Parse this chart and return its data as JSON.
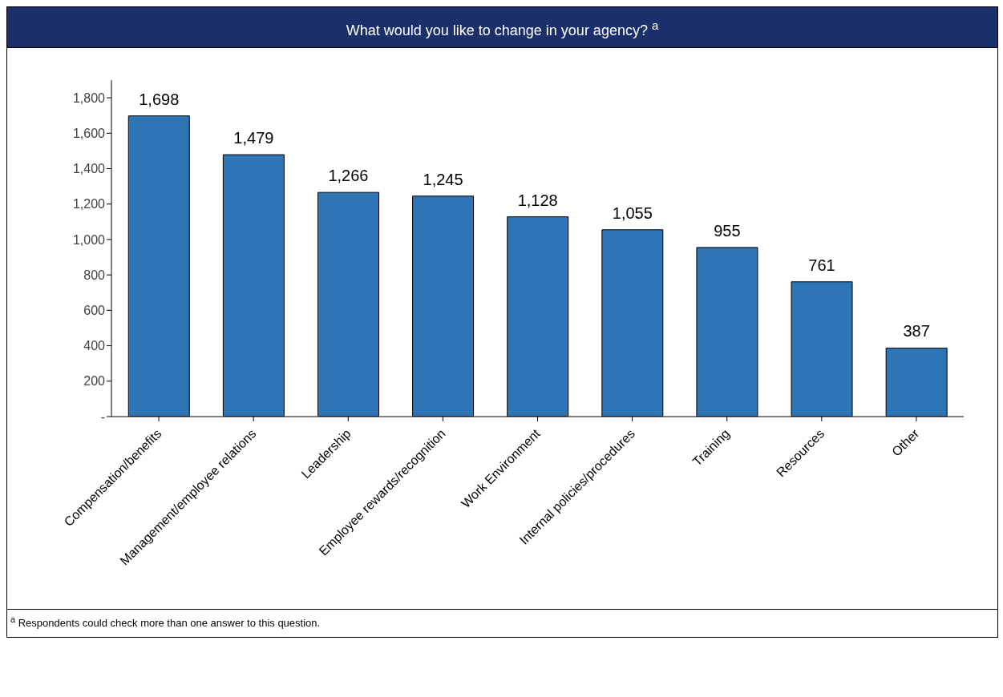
{
  "chart_data": {
    "type": "bar",
    "title": "What would you like to change in your agency? $^{a}$",
    "categories": [
      "Compensation/benefits",
      "Management/employee relations",
      "Leadership",
      "Employee rewards/recognition",
      "Work Environment",
      "Internal policies/procedures",
      "Training",
      "Resources",
      "Other"
    ],
    "values": [
      1698,
      1479,
      1266,
      1245,
      1128,
      1055,
      955,
      761,
      387
    ],
    "color": "#2e75b6",
    "ylim": [
      0,
      1900
    ],
    "yticks": [
      {
        "value": 0,
        "label": "-"
      },
      {
        "value": 200,
        "label": "200"
      },
      {
        "value": 400,
        "label": "400"
      },
      {
        "value": 600,
        "label": "600"
      },
      {
        "value": 800,
        "label": "800"
      },
      {
        "value": 1000,
        "label": "1,000"
      },
      {
        "value": 1200,
        "label": "1,200"
      },
      {
        "value": 1400,
        "label": "1,400"
      },
      {
        "value": 1600,
        "label": "1,600"
      },
      {
        "value": 1800,
        "label": "1,800"
      }
    ],
    "value_labels": [
      "1,698",
      "1,479",
      "1,266",
      "1,245",
      "1,128",
      "1,055",
      "955",
      "761",
      "387"
    ],
    "grid": false,
    "legend": false,
    "annotations": [
      "$^{a}$ Respondents could check more than one answer to this question."
    ]
  }
}
